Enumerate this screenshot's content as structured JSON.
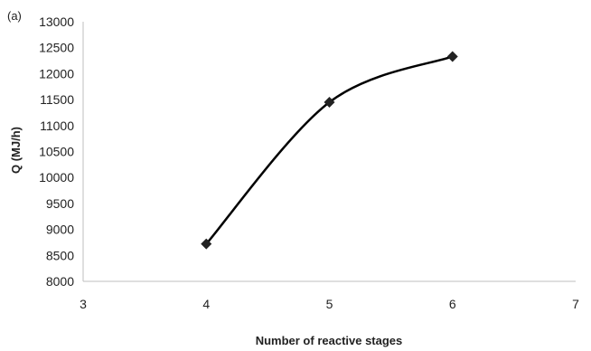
{
  "chart_data": {
    "type": "line",
    "panel_label": "(a)",
    "title": "",
    "xlabel": "Number of reactive stages",
    "ylabel": "Q (MJ/h)",
    "xlim": [
      3,
      7
    ],
    "ylim": [
      8000,
      13000
    ],
    "x_ticks": [
      3,
      4,
      5,
      6,
      7
    ],
    "y_ticks": [
      8000,
      8500,
      9000,
      9500,
      10000,
      10500,
      11000,
      11500,
      12000,
      12500,
      13000
    ],
    "grid": false,
    "legend": "none",
    "smooth": true,
    "marker": "diamond",
    "series": [
      {
        "x": [
          4,
          5,
          6
        ],
        "y": [
          8720,
          11450,
          12330
        ]
      }
    ],
    "colors": {
      "line": "#000000",
      "marker": "#222222",
      "axis": "#bfbfbf",
      "text": "#222222"
    }
  }
}
